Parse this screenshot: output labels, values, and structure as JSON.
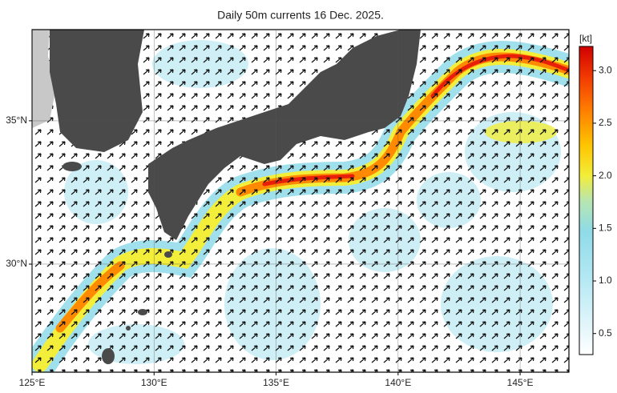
{
  "chart_data": {
    "type": "map",
    "title": "Daily 50m currents 16 Dec. 2025.",
    "xlim": [
      125,
      147
    ],
    "xticks": [
      {
        "value": 125,
        "label": "125°E"
      },
      {
        "value": 130,
        "label": "130°E"
      },
      {
        "value": 135,
        "label": "135°E"
      },
      {
        "value": 140,
        "label": "140°E"
      },
      {
        "value": 145,
        "label": "145°E"
      }
    ],
    "ylim": [
      26.23,
      38.18
    ],
    "yticks": [
      {
        "value": 30,
        "label": "30°N"
      },
      {
        "value": 35,
        "label": "35°N"
      }
    ],
    "grid": true,
    "colorbar": {
      "label": "[kt]",
      "lim": [
        0.3,
        3.23
      ],
      "ticks": [
        0.5,
        {
          "value": 1.0,
          "label": "1.0"
        },
        1.5,
        {
          "value": 2.0,
          "label": "2.0"
        },
        2.5,
        {
          "value": 3.0,
          "label": "3.0"
        }
      ]
    }
  }
}
